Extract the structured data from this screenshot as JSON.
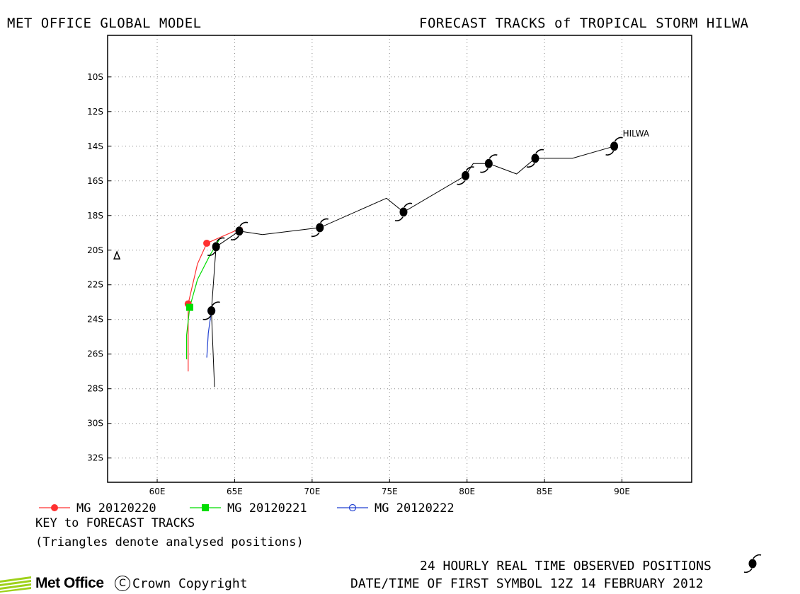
{
  "header": {
    "left_title": "MET OFFICE GLOBAL MODEL",
    "right_title": "FORECAST TRACKS of TROPICAL STORM HILWA"
  },
  "chart_data": {
    "type": "track-map",
    "storm_label": "HILWA",
    "x_range": [
      56.8,
      94.5
    ],
    "y_range": [
      -33.4,
      -7.6
    ],
    "x_ticks": [
      {
        "value": 60,
        "label": "60E"
      },
      {
        "value": 65,
        "label": "65E"
      },
      {
        "value": 70,
        "label": "70E"
      },
      {
        "value": 75,
        "label": "75E"
      },
      {
        "value": 80,
        "label": "80E"
      },
      {
        "value": 85,
        "label": "85E"
      },
      {
        "value": 90,
        "label": "90E"
      }
    ],
    "y_ticks": [
      {
        "value": -10,
        "label": "10S"
      },
      {
        "value": -12,
        "label": "12S"
      },
      {
        "value": -14,
        "label": "14S"
      },
      {
        "value": -16,
        "label": "16S"
      },
      {
        "value": -18,
        "label": "18S"
      },
      {
        "value": -20,
        "label": "20S"
      },
      {
        "value": -22,
        "label": "22S"
      },
      {
        "value": -24,
        "label": "24S"
      },
      {
        "value": -26,
        "label": "26S"
      },
      {
        "value": -28,
        "label": "28S"
      },
      {
        "value": -30,
        "label": "30S"
      },
      {
        "value": -32,
        "label": "32S"
      }
    ],
    "grid": "dotted",
    "observed_track": {
      "color": "#000000",
      "points": [
        [
          89.5,
          -14.0
        ],
        [
          86.8,
          -14.7
        ],
        [
          84.4,
          -14.7
        ],
        [
          83.2,
          -15.6
        ],
        [
          81.4,
          -15.0
        ],
        [
          80.4,
          -15.0
        ],
        [
          79.9,
          -15.7
        ],
        [
          75.9,
          -17.8
        ],
        [
          74.8,
          -17.0
        ],
        [
          70.5,
          -18.7
        ],
        [
          66.8,
          -19.1
        ],
        [
          65.3,
          -18.9
        ],
        [
          63.8,
          -19.8
        ],
        [
          63.5,
          -23.5
        ],
        [
          63.7,
          -27.9
        ]
      ],
      "daily_positions": [
        [
          89.5,
          -14.0
        ],
        [
          84.4,
          -14.7
        ],
        [
          81.4,
          -15.0
        ],
        [
          79.9,
          -15.7
        ],
        [
          75.9,
          -17.8
        ],
        [
          70.5,
          -18.7
        ],
        [
          65.3,
          -18.9
        ],
        [
          63.8,
          -19.8
        ],
        [
          63.5,
          -23.5
        ]
      ]
    },
    "analysed_position": [
      57.4,
      -20.3
    ],
    "series": [
      {
        "name": "MG 20120220",
        "color": "#ff3030",
        "marker": "filled-circle",
        "points": [
          [
            65.5,
            -18.7
          ],
          [
            63.2,
            -19.6
          ],
          [
            62.6,
            -20.8
          ],
          [
            62.0,
            -23.1
          ],
          [
            62.0,
            -24.8
          ],
          [
            62.0,
            -27.0
          ]
        ],
        "markers": [
          [
            63.2,
            -19.6
          ],
          [
            62.0,
            -23.1
          ]
        ]
      },
      {
        "name": "MG 20120221",
        "color": "#00dd00",
        "marker": "filled-square",
        "points": [
          [
            64.0,
            -19.4
          ],
          [
            63.4,
            -20.3
          ],
          [
            62.6,
            -21.7
          ],
          [
            62.1,
            -23.3
          ],
          [
            61.9,
            -24.9
          ],
          [
            61.9,
            -26.3
          ]
        ],
        "markers": [
          [
            62.1,
            -23.3
          ]
        ]
      },
      {
        "name": "MG 20120222",
        "color": "#2040d0",
        "marker": "open-circle",
        "points": [
          [
            63.5,
            -23.5
          ],
          [
            63.3,
            -24.8
          ],
          [
            63.2,
            -26.2
          ]
        ],
        "markers": [
          [
            63.5,
            -23.5
          ]
        ]
      }
    ]
  },
  "key": {
    "title": "KEY to FORECAST TRACKS",
    "note": "(Triangles denote analysed positions)"
  },
  "footer": {
    "observed_label": "24 HOURLY REAL TIME OBSERVED POSITIONS",
    "datetime_label": "DATE/TIME OF FIRST SYMBOL 12Z 14 FEBRUARY 2012",
    "logo_text": "Met Office",
    "copyright_symbol": "C",
    "copyright_text": "Crown Copyright"
  }
}
